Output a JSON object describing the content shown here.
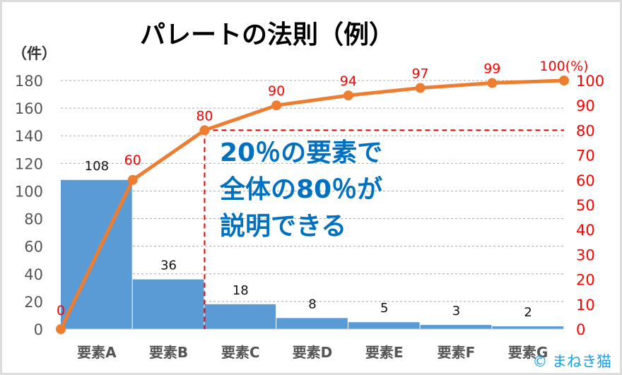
{
  "chart_data": {
    "type": "bar+line",
    "title": "パレートの法則（例）",
    "ylabel_left": "（件）",
    "ylabel_right_unit": "(%)",
    "categories": [
      "要素A",
      "要素B",
      "要素C",
      "要素D",
      "要素E",
      "要素F",
      "要素G"
    ],
    "bar_values": [
      108,
      36,
      18,
      8,
      5,
      3,
      2
    ],
    "cumulative_percent": [
      0,
      60,
      80,
      90,
      94,
      97,
      99,
      100
    ],
    "ylim_left": [
      0,
      180
    ],
    "yticks_left": [
      0,
      20,
      40,
      60,
      80,
      100,
      120,
      140,
      160,
      180
    ],
    "ylim_right": [
      0,
      100
    ],
    "yticks_right": [
      0,
      10,
      20,
      30,
      40,
      50,
      60,
      70,
      80,
      90,
      100
    ],
    "grid": true,
    "highlight": {
      "category_index": 2,
      "percent": 80
    },
    "annotation": [
      "20％の要素で",
      "全体の80％が",
      "説明できる"
    ],
    "colors": {
      "bar": "#5B9BD5",
      "line": "#ED7D31",
      "right_axis": "#FF0000",
      "annotation": "#0070C0",
      "highlight": "#E00000"
    }
  },
  "watermark": "© まねき猫"
}
